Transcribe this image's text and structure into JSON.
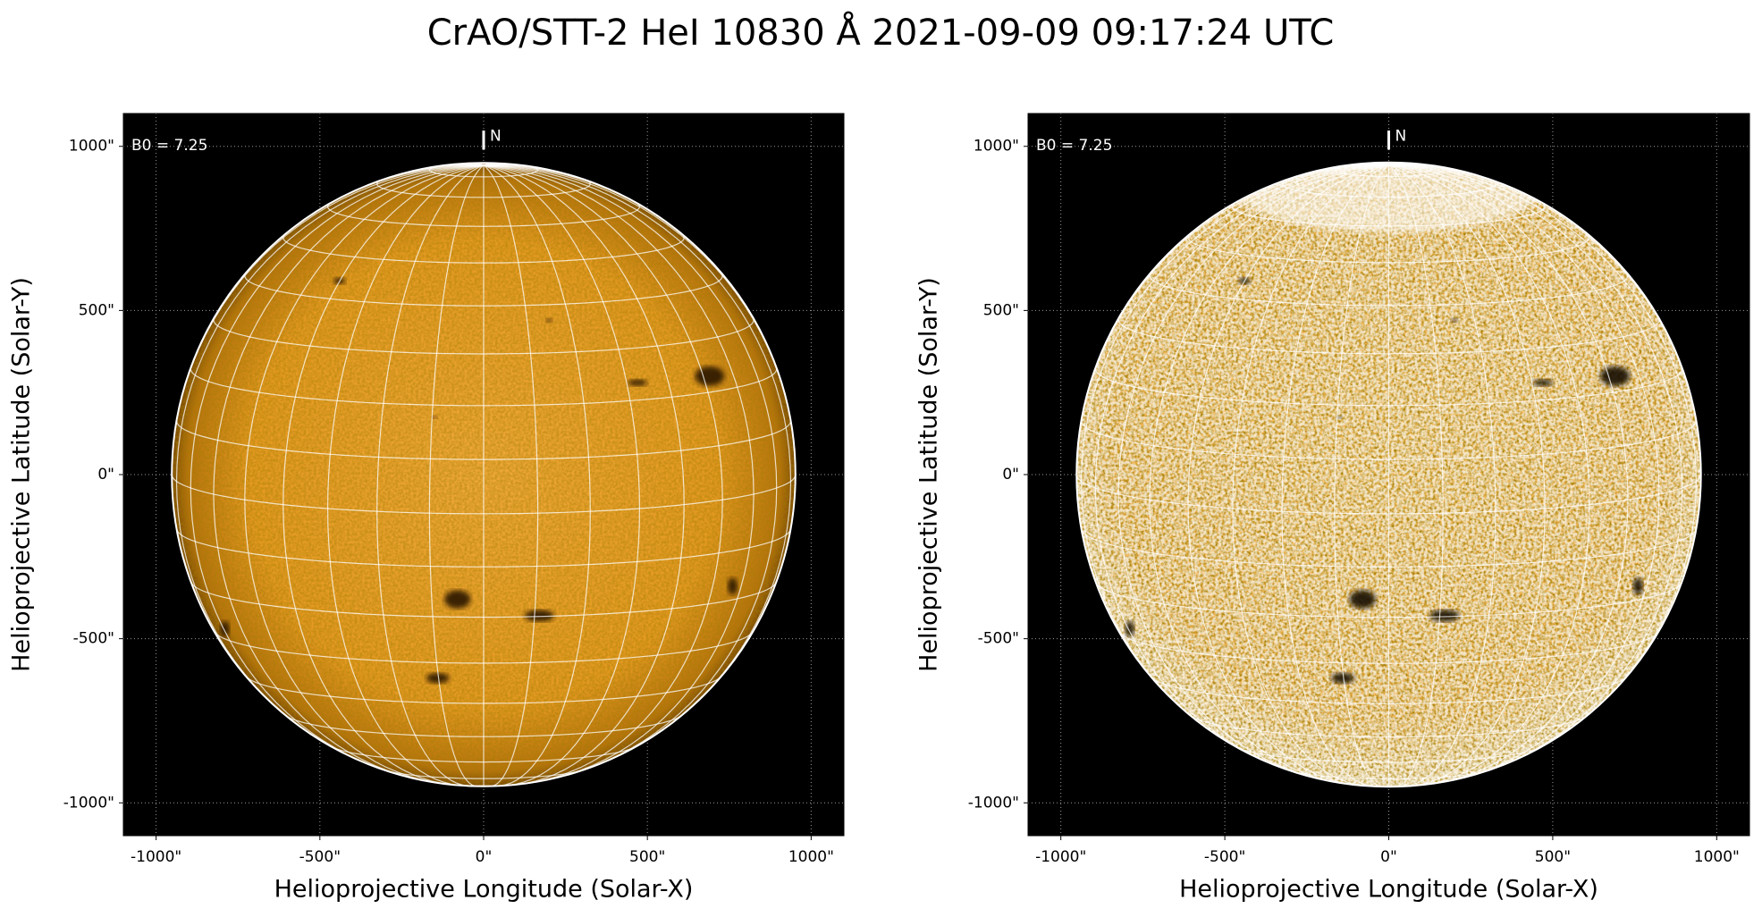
{
  "title": "CrAO/STT-2 HeI 10830 Å 2021-09-09 09:17:24 UTC",
  "chart_data": [
    {
      "type": "image",
      "xlabel": "Helioprojective Longitude (Solar-X)",
      "ylabel": "Helioprojective Latitude (Solar-Y)",
      "annotation": "B0 = 7.25",
      "north_label": "N",
      "xlim": [
        -1100,
        1100
      ],
      "ylim": [
        -1100,
        1100
      ],
      "xticks": [
        {
          "value": -1000,
          "label": "-1000\""
        },
        {
          "value": -500,
          "label": "-500\""
        },
        {
          "value": 0,
          "label": "0\""
        },
        {
          "value": 500,
          "label": "500\""
        },
        {
          "value": 1000,
          "label": "1000\""
        }
      ],
      "yticks": [
        {
          "value": -1000,
          "label": "-1000\""
        },
        {
          "value": -500,
          "label": "-500\""
        },
        {
          "value": 0,
          "label": "0\""
        },
        {
          "value": 500,
          "label": "500\""
        },
        {
          "value": 1000,
          "label": "1000\""
        }
      ],
      "grid": true
    },
    {
      "type": "image",
      "xlabel": "Helioprojective Longitude (Solar-X)",
      "ylabel": "Helioprojective Latitude (Solar-Y)",
      "annotation": "B0 = 7.25",
      "north_label": "N",
      "xlim": [
        -1100,
        1100
      ],
      "ylim": [
        -1100,
        1100
      ],
      "xticks": [
        {
          "value": -1000,
          "label": "-1000\""
        },
        {
          "value": -500,
          "label": "-500\""
        },
        {
          "value": 0,
          "label": "0\""
        },
        {
          "value": 500,
          "label": "500\""
        },
        {
          "value": 1000,
          "label": "1000\""
        }
      ],
      "yticks": [
        {
          "value": -1000,
          "label": "-1000\""
        },
        {
          "value": -500,
          "label": "-500\""
        },
        {
          "value": 0,
          "label": "0\""
        },
        {
          "value": 500,
          "label": "500\""
        },
        {
          "value": 1000,
          "label": "1000\""
        }
      ],
      "grid": true
    }
  ]
}
